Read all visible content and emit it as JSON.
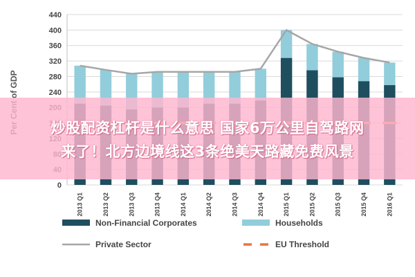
{
  "chart_data": {
    "type": "bar",
    "stacked": true,
    "categories": [
      "2013 Q1",
      "2013 Q2",
      "2013 Q3",
      "2013 Q4",
      "2014 Q1",
      "2014 Q2",
      "2014 Q3",
      "2014 Q4",
      "2015 Q1",
      "2015 Q2",
      "2015 Q3",
      "2015 Q4",
      "2016 Q1"
    ],
    "series": [
      {
        "name": "Non-Financial Corporates",
        "type": "bar",
        "color": "#1f4e5f",
        "values": [
          210,
          205,
          195,
          200,
          200,
          210,
          210,
          218,
          328,
          296,
          278,
          268,
          258
        ]
      },
      {
        "name": "Households",
        "type": "bar",
        "color": "#92cddc",
        "values": [
          98,
          92,
          92,
          92,
          92,
          82,
          82,
          82,
          72,
          68,
          66,
          60,
          58
        ]
      },
      {
        "name": "Private Sector",
        "type": "line",
        "color": "#a6a6a6",
        "values": [
          308,
          297,
          287,
          292,
          292,
          292,
          292,
          300,
          400,
          364,
          344,
          328,
          316
        ]
      },
      {
        "name": "EU Threshold",
        "type": "dash",
        "color": "#e8743b",
        "values": [
          160,
          160,
          160,
          160,
          160,
          160,
          160,
          160,
          160,
          160,
          160,
          160,
          160
        ]
      }
    ],
    "title": "",
    "xlabel": "",
    "ylabel": "Per Cent of GDP",
    "ylim": [
      0,
      440
    ],
    "yticks": [
      0,
      40,
      80,
      120,
      160,
      200,
      240,
      280,
      320,
      360,
      400,
      440
    ],
    "grid": true,
    "legend": "bottom"
  },
  "overlay": {
    "line1": "炒股配资杠杆是什么意思 国家6万公里自驾路网",
    "line2": "来了！北方边境线这3条绝美天路藏免费风景"
  }
}
